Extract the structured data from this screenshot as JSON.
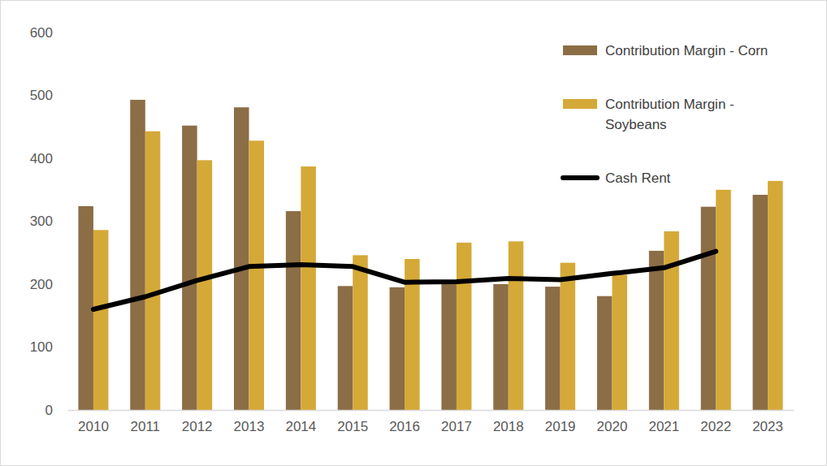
{
  "chart_data": {
    "type": "bar",
    "categories": [
      "2010",
      "2011",
      "2012",
      "2013",
      "2014",
      "2015",
      "2016",
      "2017",
      "2018",
      "2019",
      "2020",
      "2021",
      "2022",
      "2023"
    ],
    "series": [
      {
        "name": "Contribution Margin - Corn",
        "color": "#8b6d46",
        "type": "bar",
        "values": [
          324,
          493,
          452,
          481,
          316,
          197,
          195,
          203,
          200,
          196,
          181,
          253,
          323,
          342
        ]
      },
      {
        "name": "Contribution Margin - Soybeans",
        "color": "#d5a937",
        "type": "bar",
        "values": [
          286,
          443,
          397,
          428,
          387,
          246,
          240,
          266,
          268,
          234,
          215,
          284,
          350,
          364
        ]
      },
      {
        "name": "Cash Rent",
        "color": "#000000",
        "type": "line",
        "values": [
          160,
          180,
          206,
          228,
          231,
          228,
          203,
          204,
          209,
          207,
          217,
          226,
          252,
          null
        ]
      }
    ],
    "ylim": [
      0,
      600
    ],
    "yticks": [
      0,
      100,
      200,
      300,
      400,
      500,
      600
    ],
    "grid": false,
    "legend": "top-right"
  }
}
